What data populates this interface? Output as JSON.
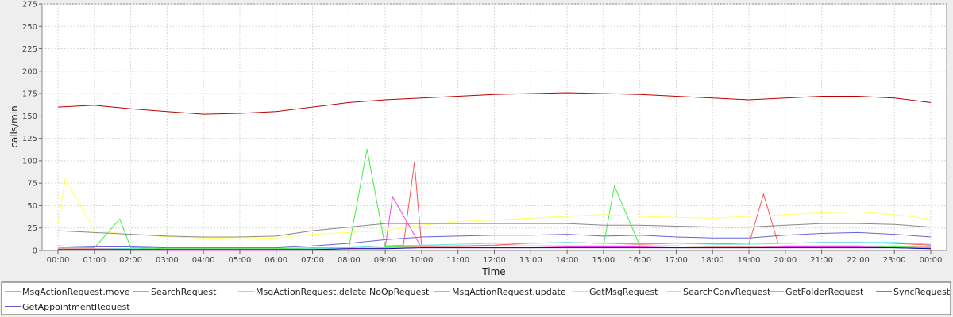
{
  "chart_data": {
    "type": "line",
    "title": "",
    "xlabel": "Time",
    "ylabel": "calls/min",
    "ylim": [
      0,
      275
    ],
    "yticks": [
      0,
      25,
      50,
      75,
      100,
      125,
      150,
      175,
      200,
      225,
      250,
      275
    ],
    "xticks": [
      "00:00",
      "01:00",
      "02:00",
      "03:00",
      "04:00",
      "05:00",
      "06:00",
      "07:00",
      "08:00",
      "09:00",
      "10:00",
      "11:00",
      "12:00",
      "13:00",
      "14:00",
      "15:00",
      "16:00",
      "17:00",
      "18:00",
      "19:00",
      "20:00",
      "21:00",
      "22:00",
      "23:00",
      "00:00"
    ],
    "xlim_hours": [
      0,
      24
    ],
    "grid": true,
    "legend_position": "bottom",
    "series": [
      {
        "name": "MsgActionRequest.move",
        "color": "#ff5555",
        "x": [
          0,
          1,
          2,
          3,
          4,
          5,
          6,
          7,
          8,
          8.5,
          9,
          9.5,
          9.8,
          10,
          11,
          12,
          13,
          14,
          15,
          16,
          17,
          18,
          19,
          19.4,
          19.8,
          20,
          21,
          22,
          23,
          24
        ],
        "y": [
          2,
          2,
          2,
          1,
          1,
          1,
          1,
          2,
          3,
          4,
          5,
          6,
          98,
          5,
          5,
          6,
          8,
          9,
          8,
          7,
          8,
          8,
          7,
          63,
          8,
          8,
          9,
          9,
          8,
          6
        ]
      },
      {
        "name": "SearchRequest",
        "color": "#6666dd",
        "x": [
          0,
          1,
          2,
          3,
          4,
          5,
          6,
          7,
          8,
          9,
          10,
          11,
          12,
          13,
          14,
          15,
          16,
          17,
          18,
          19,
          20,
          21,
          22,
          23,
          24
        ],
        "y": [
          5,
          4,
          4,
          3,
          3,
          3,
          3,
          5,
          8,
          12,
          15,
          16,
          17,
          17,
          18,
          16,
          17,
          15,
          14,
          14,
          17,
          19,
          20,
          18,
          15
        ]
      },
      {
        "name": "MsgActionRequest.delete",
        "color": "#44ee44",
        "x": [
          0,
          1,
          1.7,
          2,
          3,
          4,
          5,
          6,
          7,
          8,
          8.5,
          9,
          10,
          11,
          12,
          13,
          14,
          15,
          15.3,
          16,
          17,
          18,
          19,
          20,
          21,
          22,
          23,
          24
        ],
        "y": [
          3,
          3,
          35,
          3,
          2,
          2,
          2,
          2,
          3,
          3,
          113,
          4,
          4,
          5,
          5,
          5,
          5,
          5,
          72,
          5,
          5,
          4,
          4,
          5,
          5,
          5,
          4,
          3
        ]
      },
      {
        "name": "NoOpRequest",
        "color": "#ffff66",
        "x": [
          0,
          0.2,
          1,
          2,
          3,
          4,
          5,
          6,
          7,
          8,
          9,
          10,
          11,
          12,
          13,
          14,
          15,
          16,
          17,
          18,
          19,
          20,
          21,
          22,
          23,
          24
        ],
        "y": [
          30,
          80,
          22,
          18,
          15,
          14,
          13,
          14,
          18,
          20,
          22,
          28,
          32,
          34,
          36,
          38,
          40,
          38,
          37,
          36,
          38,
          40,
          42,
          43,
          40,
          35
        ]
      },
      {
        "name": "MsgActionRequest.update",
        "color": "#ee44ee",
        "x": [
          0,
          1,
          2,
          3,
          4,
          5,
          6,
          7,
          8,
          9,
          9.2,
          10,
          11,
          12,
          13,
          14,
          15,
          16,
          17,
          18,
          19,
          20,
          21,
          22,
          23,
          24
        ],
        "y": [
          1,
          1,
          1,
          0,
          0,
          0,
          0,
          1,
          2,
          3,
          60,
          3,
          3,
          3,
          3,
          4,
          4,
          4,
          3,
          3,
          3,
          4,
          4,
          4,
          3,
          2
        ]
      },
      {
        "name": "GetMsgRequest",
        "color": "#55eeee",
        "x": [
          0,
          1,
          2,
          3,
          4,
          5,
          6,
          7,
          8,
          9,
          10,
          11,
          12,
          13,
          14,
          15,
          16,
          17,
          18,
          19,
          20,
          21,
          22,
          23,
          24
        ],
        "y": [
          2,
          2,
          2,
          1,
          1,
          1,
          1,
          2,
          3,
          5,
          6,
          7,
          8,
          8,
          9,
          8,
          8,
          8,
          7,
          7,
          8,
          9,
          9,
          9,
          7
        ]
      },
      {
        "name": "SearchConvRequest",
        "color": "#ff9999",
        "x": [
          0,
          1,
          2,
          3,
          4,
          5,
          6,
          7,
          8,
          9,
          10,
          11,
          12,
          13,
          14,
          15,
          16,
          17,
          18,
          19,
          20,
          21,
          22,
          23,
          24
        ],
        "y": [
          2,
          2,
          1,
          1,
          1,
          1,
          1,
          1,
          2,
          3,
          4,
          4,
          5,
          5,
          5,
          5,
          5,
          5,
          4,
          4,
          5,
          5,
          5,
          5,
          4
        ]
      },
      {
        "name": "GetFolderRequest",
        "color": "#888888",
        "x": [
          0,
          1,
          2,
          3,
          4,
          5,
          6,
          7,
          8,
          9,
          10,
          11,
          12,
          13,
          14,
          15,
          16,
          17,
          18,
          19,
          20,
          21,
          22,
          23,
          24
        ],
        "y": [
          22,
          20,
          18,
          16,
          15,
          15,
          16,
          22,
          26,
          30,
          30,
          30,
          30,
          30,
          30,
          28,
          28,
          27,
          26,
          26,
          28,
          30,
          30,
          29,
          26
        ]
      },
      {
        "name": "SyncRequest",
        "color": "#bb0000",
        "x": [
          0,
          1,
          2,
          3,
          4,
          5,
          6,
          7,
          8,
          9,
          10,
          11,
          12,
          13,
          14,
          15,
          16,
          17,
          18,
          19,
          20,
          21,
          22,
          23,
          24
        ],
        "y": [
          160,
          162,
          158,
          155,
          152,
          153,
          155,
          160,
          165,
          168,
          170,
          172,
          174,
          175,
          176,
          175,
          174,
          172,
          170,
          168,
          170,
          172,
          172,
          170,
          165
        ]
      },
      {
        "name": "GetAppointmentRequest",
        "color": "#0000aa",
        "x": [
          0,
          1,
          2,
          3,
          4,
          5,
          6,
          7,
          8,
          9,
          10,
          11,
          12,
          13,
          14,
          15,
          16,
          17,
          18,
          19,
          20,
          21,
          22,
          23,
          24
        ],
        "y": [
          1,
          1,
          1,
          1,
          1,
          1,
          1,
          1,
          2,
          2,
          3,
          3,
          3,
          3,
          3,
          3,
          3,
          3,
          3,
          3,
          3,
          3,
          3,
          3,
          2
        ]
      }
    ]
  }
}
